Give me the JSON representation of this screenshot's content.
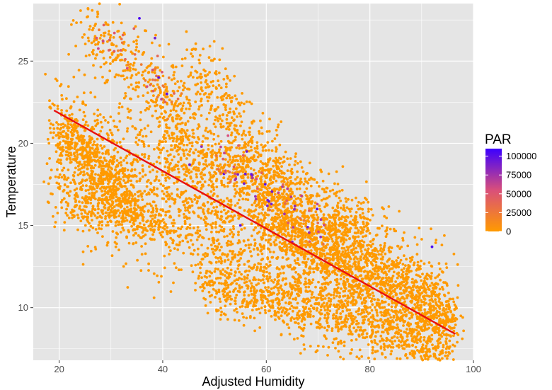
{
  "chart_data": {
    "type": "scatter",
    "xlabel": "Adjusted Humidity",
    "ylabel": "Temperature",
    "xlim": [
      15,
      100
    ],
    "ylim": [
      6.8,
      28.5
    ],
    "x_ticks": [
      20,
      40,
      60,
      80,
      100
    ],
    "y_ticks": [
      10,
      15,
      20,
      25
    ],
    "grid": true,
    "legend": {
      "title": "PAR",
      "placement": "right",
      "type": "colorbar",
      "range": [
        0,
        110000
      ],
      "labels": [
        {
          "value": 100000,
          "text": "100000"
        },
        {
          "value": 75000,
          "text": "75000"
        },
        {
          "value": 50000,
          "text": "50000"
        },
        {
          "value": 25000,
          "text": "25000"
        },
        {
          "value": 0,
          "text": "0"
        }
      ]
    },
    "colors": {
      "low": "#ff9a00",
      "mid": "#d94f7a",
      "high": "#3c00ff",
      "trend": "#e81010",
      "panel": "#e5e5e5",
      "grid": "#ffffff"
    },
    "trend_line": {
      "x": [
        19,
        96.5
      ],
      "y": [
        22.0,
        8.4
      ]
    },
    "clusters": [
      {
        "x": [
          19,
          96
        ],
        "y": [
          19.5,
          9.0
        ],
        "spread": 2.2,
        "count": 2600,
        "par": 0
      },
      {
        "x": [
          20,
          35
        ],
        "y": [
          21.0,
          16.0
        ],
        "spread": 0.8,
        "count": 450,
        "par": 0
      },
      {
        "x": [
          22,
          40
        ],
        "y": [
          16.5,
          15.0
        ],
        "spread": 0.6,
        "count": 250,
        "par": 0
      },
      {
        "x": [
          25,
          45
        ],
        "y": [
          27.0,
          22.0
        ],
        "spread": 1.2,
        "count": 320,
        "par": 0
      },
      {
        "x": [
          40,
          80
        ],
        "y": [
          20.5,
          14.5
        ],
        "spread": 1.1,
        "count": 800,
        "par": 0
      },
      {
        "x": [
          60,
          96
        ],
        "y": [
          15.5,
          9.5
        ],
        "spread": 1.0,
        "count": 1100,
        "par": 0
      },
      {
        "x": [
          48,
          95
        ],
        "y": [
          11.5,
          7.8
        ],
        "spread": 0.9,
        "count": 900,
        "par": 0
      },
      {
        "x": [
          45,
          65
        ],
        "y": [
          24.5,
          17.0
        ],
        "spread": 1.2,
        "count": 400,
        "par": 0
      },
      {
        "x": [
          28,
          42
        ],
        "y": [
          27.0,
          23.0
        ],
        "spread": 0.8,
        "count": 30,
        "par": 40000
      },
      {
        "x": [
          50,
          72
        ],
        "y": [
          19.5,
          14.5
        ],
        "spread": 0.7,
        "count": 55,
        "par": 60000
      },
      {
        "x": [
          38,
          42
        ],
        "y": [
          24.0,
          22.5
        ],
        "spread": 0.6,
        "count": 14,
        "par": 30000
      }
    ],
    "points": [
      {
        "x": 35.5,
        "y": 27.6,
        "par": 105000
      },
      {
        "x": 38.5,
        "y": 26.4,
        "par": 90000
      },
      {
        "x": 40.8,
        "y": 23.0,
        "par": 100000
      },
      {
        "x": 39.2,
        "y": 24.0,
        "par": 100000
      },
      {
        "x": 45.2,
        "y": 18.7,
        "par": 95000
      },
      {
        "x": 47.5,
        "y": 19.8,
        "par": 80000
      },
      {
        "x": 54.5,
        "y": 18.1,
        "par": 90000
      },
      {
        "x": 55.0,
        "y": 15.0,
        "par": 100000
      },
      {
        "x": 57.3,
        "y": 17.9,
        "par": 75000
      },
      {
        "x": 58.0,
        "y": 16.6,
        "par": 70000
      },
      {
        "x": 59.8,
        "y": 17.5,
        "par": 100000
      },
      {
        "x": 60.2,
        "y": 16.2,
        "par": 85000
      },
      {
        "x": 63.5,
        "y": 15.7,
        "par": 75000
      },
      {
        "x": 65.0,
        "y": 14.0,
        "par": 85000
      },
      {
        "x": 66.8,
        "y": 16.8,
        "par": 65000
      },
      {
        "x": 68.0,
        "y": 14.9,
        "par": 90000
      },
      {
        "x": 69.8,
        "y": 16.0,
        "par": 100000
      },
      {
        "x": 70.5,
        "y": 14.3,
        "par": 80000
      },
      {
        "x": 92.0,
        "y": 13.7,
        "par": 105000
      }
    ]
  }
}
